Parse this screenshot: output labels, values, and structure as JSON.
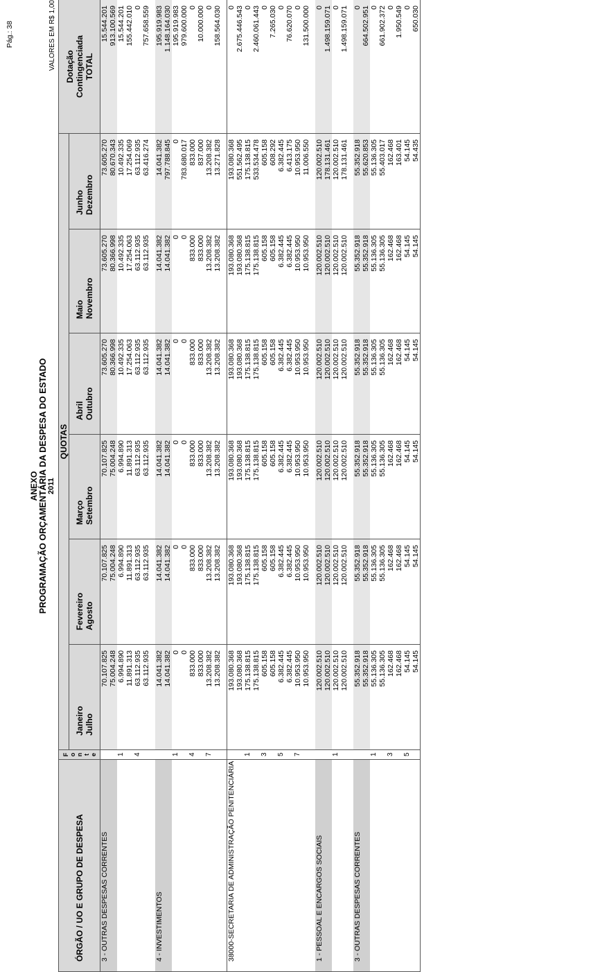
{
  "header": {
    "title_line1": "ANEXO",
    "title_line2": "PROGRAMAÇÃO ORÇAMENTÁRIA DA DESPESA DO ESTADO",
    "year": "2011",
    "page": "Pág.:    38",
    "valores": "VALORES EM R$ 1,00"
  },
  "columns": {
    "orgao": "ÓRGÃO / UO  E GRUPO DE DESPESA",
    "fonte": [
      "F",
      "o",
      "n",
      "t",
      "e"
    ],
    "quotas": "QUOTAS",
    "months": [
      [
        "Janeiro",
        "Julho"
      ],
      [
        "Fevereiro",
        "Agosto"
      ],
      [
        "Março",
        "Setembro"
      ],
      [
        "Abril",
        "Outubro"
      ],
      [
        "Maio",
        "Novembro"
      ],
      [
        "Junho",
        "Dezembro"
      ]
    ],
    "total": [
      "Dotação",
      "Contingenciada",
      "TOTAL"
    ]
  },
  "rows": [
    {
      "type": "grp",
      "org": "3 - OUTRAS DESPESAS CORRENTES",
      "fonte": "",
      "q1": [
        "70.107.825",
        "70.107.825",
        "70.107.825",
        "73.605.270",
        "73.605.270",
        "73.605.270",
        "15.544.201"
      ],
      "q2": [
        "75.004.248",
        "75.004.248",
        "75.004.248",
        "80.366.998",
        "80.366.998",
        "80.670.343",
        "913.100.569"
      ]
    },
    {
      "type": "fonte",
      "org": "",
      "fonte": "1",
      "q1": [
        "6.994.890",
        "6.994.890",
        "6.994.890",
        "10.492.335",
        "10.492.335",
        "10.492.335",
        "15.544.201"
      ],
      "q2": [
        "11.891.313",
        "11.891.313",
        "11.891.313",
        "17.254.063",
        "17.254.063",
        "17.254.069",
        "155.442.010"
      ]
    },
    {
      "type": "fonte",
      "org": "",
      "fonte": "4",
      "q1": [
        "63.112.935",
        "63.112.935",
        "63.112.935",
        "63.112.935",
        "63.112.935",
        "63.112.935",
        "0"
      ],
      "q2": [
        "63.112.935",
        "63.112.935",
        "63.112.935",
        "63.112.935",
        "63.112.935",
        "63.416.274",
        "757.658.559"
      ]
    },
    {
      "type": "grp",
      "org": "4 - INVESTIMENTOS",
      "fonte": "",
      "q1": [
        "14.041.382",
        "14.041.382",
        "14.041.382",
        "14.041.382",
        "14.041.382",
        "14.041.382",
        "195.919.983"
      ],
      "q2": [
        "14.041.382",
        "14.041.382",
        "14.041.382",
        "14.041.382",
        "14.041.382",
        "797.788.845",
        "1.148.164.030"
      ]
    },
    {
      "type": "fonte",
      "org": "",
      "fonte": "1",
      "q1": [
        "0",
        "0",
        "0",
        "0",
        "0",
        "0",
        "195.919.983"
      ],
      "q2": [
        "0",
        "0",
        "0",
        "0",
        "0",
        "783.680.017",
        "979.600.000"
      ]
    },
    {
      "type": "fonte",
      "org": "",
      "fonte": "4",
      "q1": [
        "833.000",
        "833.000",
        "833.000",
        "833.000",
        "833.000",
        "833.000",
        "0"
      ],
      "q2": [
        "833.000",
        "833.000",
        "833.000",
        "833.000",
        "833.000",
        "837.000",
        "10.000.000"
      ]
    },
    {
      "type": "fonte",
      "org": "",
      "fonte": "7",
      "q1": [
        "13.208.382",
        "13.208.382",
        "13.208.382",
        "13.208.382",
        "13.208.382",
        "13.208.382",
        "0"
      ],
      "q2": [
        "13.208.382",
        "13.208.382",
        "13.208.382",
        "13.208.382",
        "13.208.382",
        "13.271.828",
        "158.564.030"
      ]
    },
    {
      "type": "org",
      "org": "38000-SECRETARIA DE ADMINISTRAÇÃO PENITENCIÁRIA",
      "fonte": "",
      "q1": [
        "193.080.368",
        "193.080.368",
        "193.080.368",
        "193.080.368",
        "193.080.368",
        "193.080.368",
        "0"
      ],
      "q2": [
        "193.080.368",
        "193.080.368",
        "193.080.368",
        "193.080.368",
        "193.080.368",
        "551.562.495",
        "2.675.446.543"
      ]
    },
    {
      "type": "fonte",
      "org": "",
      "fonte": "1",
      "q1": [
        "175.138.815",
        "175.138.815",
        "175.138.815",
        "175.138.815",
        "175.138.815",
        "175.138.815",
        "0"
      ],
      "q2": [
        "175.138.815",
        "175.138.815",
        "175.138.815",
        "175.138.815",
        "175.138.815",
        "533.534.478",
        "2.460.061.443"
      ]
    },
    {
      "type": "fonte",
      "org": "",
      "fonte": "3",
      "q1": [
        "605.158",
        "605.158",
        "605.158",
        "605.158",
        "605.158",
        "605.158",
        "0"
      ],
      "q2": [
        "605.158",
        "605.158",
        "605.158",
        "605.158",
        "605.158",
        "608.292",
        "7.265.030"
      ]
    },
    {
      "type": "fonte",
      "org": "",
      "fonte": "5",
      "q1": [
        "6.382.445",
        "6.382.445",
        "6.382.445",
        "6.382.445",
        "6.382.445",
        "6.382.445",
        "0"
      ],
      "q2": [
        "6.382.445",
        "6.382.445",
        "6.382.445",
        "6.382.445",
        "6.382.445",
        "6.413.175",
        "76.620.070"
      ]
    },
    {
      "type": "fonte",
      "org": "",
      "fonte": "7",
      "q1": [
        "10.953.950",
        "10.953.950",
        "10.953.950",
        "10.953.950",
        "10.953.950",
        "10.953.950",
        "0"
      ],
      "q2": [
        "10.953.950",
        "10.953.950",
        "10.953.950",
        "10.953.950",
        "10.953.950",
        "11.006.550",
        "131.500.000"
      ]
    },
    {
      "type": "grp",
      "org": "1 - PESSOAL E ENCARGOS SOCIAIS",
      "fonte": "",
      "q1": [
        "120.002.510",
        "120.002.510",
        "120.002.510",
        "120.002.510",
        "120.002.510",
        "120.002.510",
        "0"
      ],
      "q2": [
        "120.002.510",
        "120.002.510",
        "120.002.510",
        "120.002.510",
        "120.002.510",
        "178.131.461",
        "1.498.159.071"
      ]
    },
    {
      "type": "fonte",
      "org": "",
      "fonte": "1",
      "q1": [
        "120.002.510",
        "120.002.510",
        "120.002.510",
        "120.002.510",
        "120.002.510",
        "120.002.510",
        "0"
      ],
      "q2": [
        "120.002.510",
        "120.002.510",
        "120.002.510",
        "120.002.510",
        "120.002.510",
        "178.131.461",
        "1.498.159.071"
      ]
    },
    {
      "type": "grp",
      "org": "3 - OUTRAS DESPESAS CORRENTES",
      "fonte": "",
      "q1": [
        "55.352.918",
        "55.352.918",
        "55.352.918",
        "55.352.918",
        "55.352.918",
        "55.352.918",
        "0"
      ],
      "q2": [
        "55.352.918",
        "55.352.918",
        "55.352.918",
        "55.352.918",
        "55.352.918",
        "55.620.853",
        "664.502.951"
      ]
    },
    {
      "type": "fonte",
      "org": "",
      "fonte": "1",
      "q1": [
        "55.136.305",
        "55.136.305",
        "55.136.305",
        "55.136.305",
        "55.136.305",
        "55.136.305",
        "0"
      ],
      "q2": [
        "55.136.305",
        "55.136.305",
        "55.136.305",
        "55.136.305",
        "55.136.305",
        "55.403.017",
        "661.902.372"
      ]
    },
    {
      "type": "fonte",
      "org": "",
      "fonte": "3",
      "q1": [
        "162.468",
        "162.468",
        "162.468",
        "162.468",
        "162.468",
        "162.468",
        "0"
      ],
      "q2": [
        "162.468",
        "162.468",
        "162.468",
        "162.468",
        "162.468",
        "163.401",
        "1.950.549"
      ]
    },
    {
      "type": "fonte",
      "org": "",
      "fonte": "5",
      "q1": [
        "54.145",
        "54.145",
        "54.145",
        "54.145",
        "54.145",
        "54.145",
        "0"
      ],
      "q2": [
        "54.145",
        "54.145",
        "54.145",
        "54.145",
        "54.145",
        "54.435",
        "650.030"
      ]
    }
  ]
}
